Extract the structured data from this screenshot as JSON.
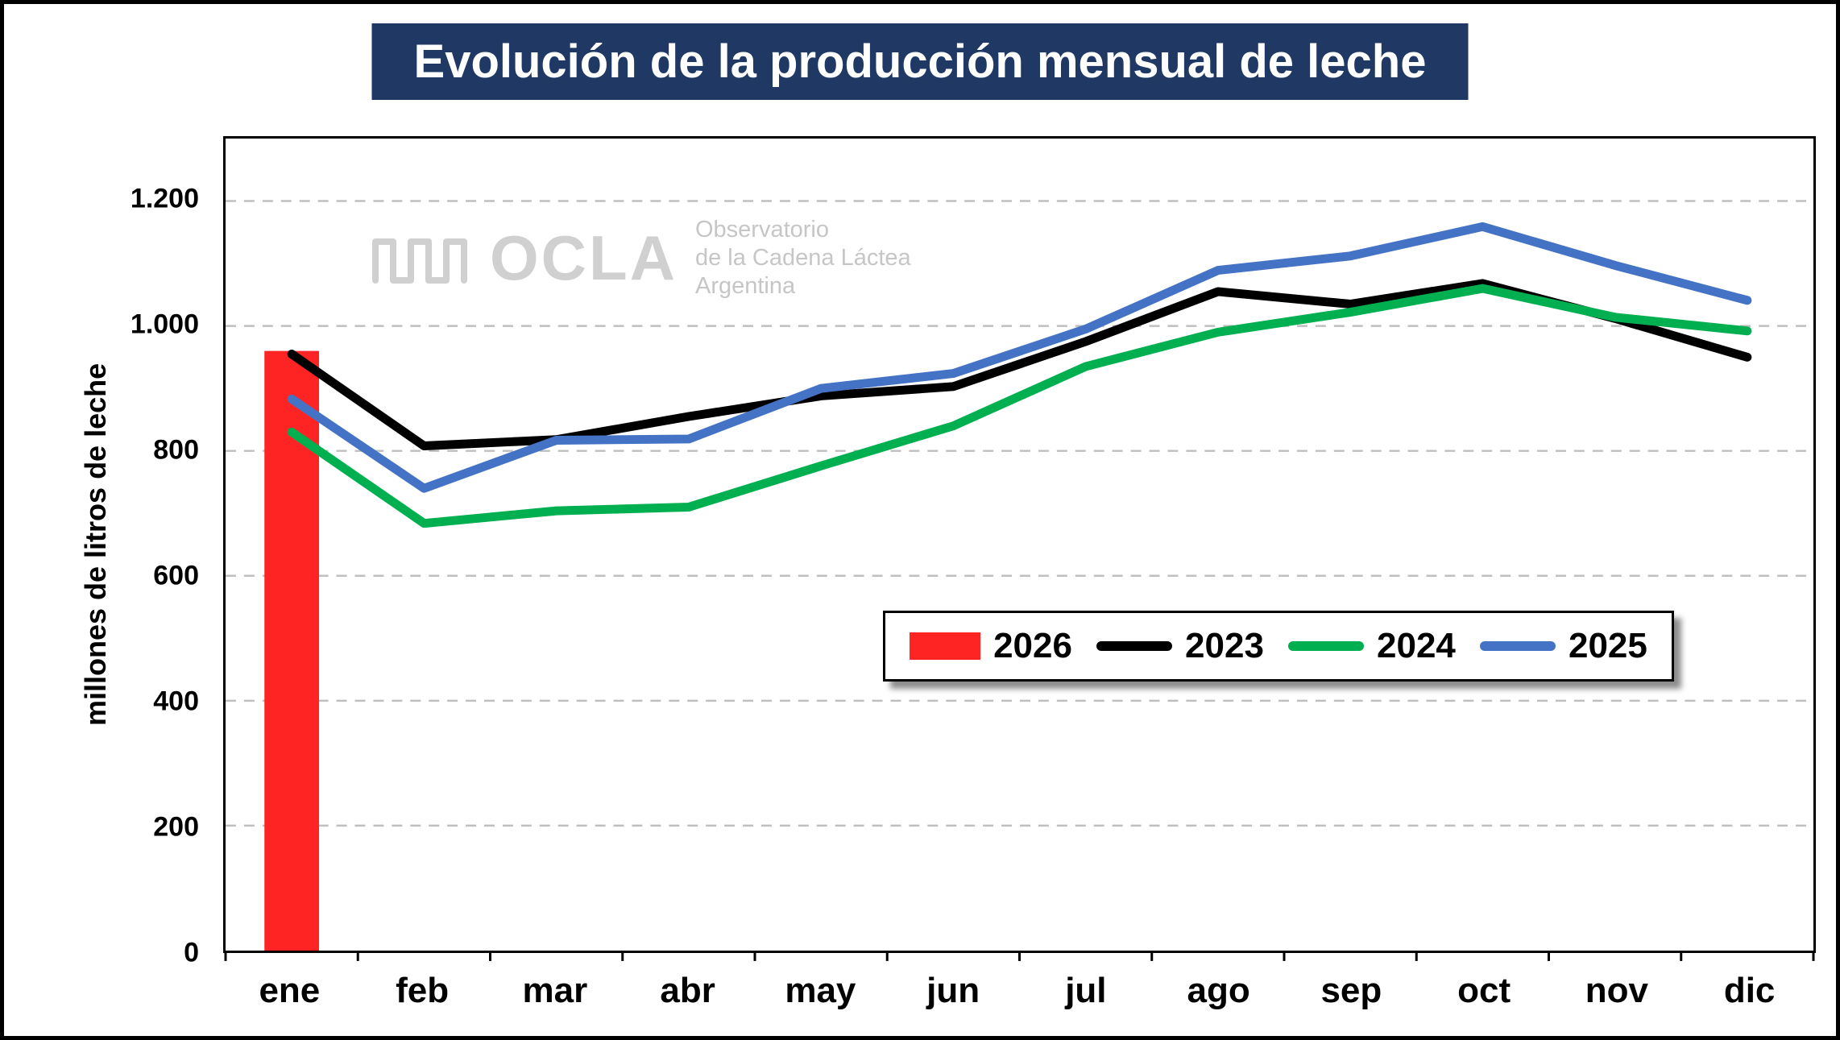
{
  "title": "Evolución de la producción mensual de leche",
  "watermark": {
    "logo_text": "OCLA",
    "subtitle_line1": "Observatorio",
    "subtitle_line2": "de la Cadena Láctea",
    "subtitle_line3": "Argentina"
  },
  "colors": {
    "title_bg": "#1f3864",
    "title_text": "#ffffff",
    "grid": "#bfbfbf",
    "axis": "#000000",
    "watermark": "#d0d0d0",
    "watermark_sub": "#c6c6c6"
  },
  "chart_data": {
    "type": "line",
    "title": "Evolución de la producción mensual de leche",
    "xlabel": "",
    "ylabel": "millones de litros de leche",
    "ylim": [
      0,
      1300
    ],
    "yticks": [
      0,
      200,
      400,
      600,
      800,
      1000,
      1200
    ],
    "ytick_labels": [
      "0",
      "200",
      "400",
      "600",
      "800",
      "1.000",
      "1.200"
    ],
    "grid": "horizontal-dashed",
    "legend_position": "inside-center-right",
    "categories": [
      "ene",
      "feb",
      "mar",
      "abr",
      "may",
      "jun",
      "jul",
      "ago",
      "sep",
      "oct",
      "nov",
      "dic"
    ],
    "bar_series": {
      "name": "2026",
      "type": "bar",
      "color": "#ff2424",
      "month": "ene",
      "value": 960
    },
    "series": [
      {
        "name": "2023",
        "color": "#000000",
        "values": [
          955,
          808,
          818,
          855,
          888,
          903,
          975,
          1055,
          1035,
          1068,
          1012,
          950
        ]
      },
      {
        "name": "2024",
        "color": "#00b050",
        "values": [
          830,
          684,
          704,
          710,
          776,
          840,
          935,
          990,
          1022,
          1060,
          1014,
          992
        ]
      },
      {
        "name": "2025",
        "color": "#4472c4",
        "values": [
          883,
          740,
          817,
          819,
          900,
          924,
          995,
          1089,
          1112,
          1159,
          1097,
          1041
        ]
      }
    ],
    "legend_order": [
      "2026",
      "2023",
      "2024",
      "2025"
    ]
  }
}
